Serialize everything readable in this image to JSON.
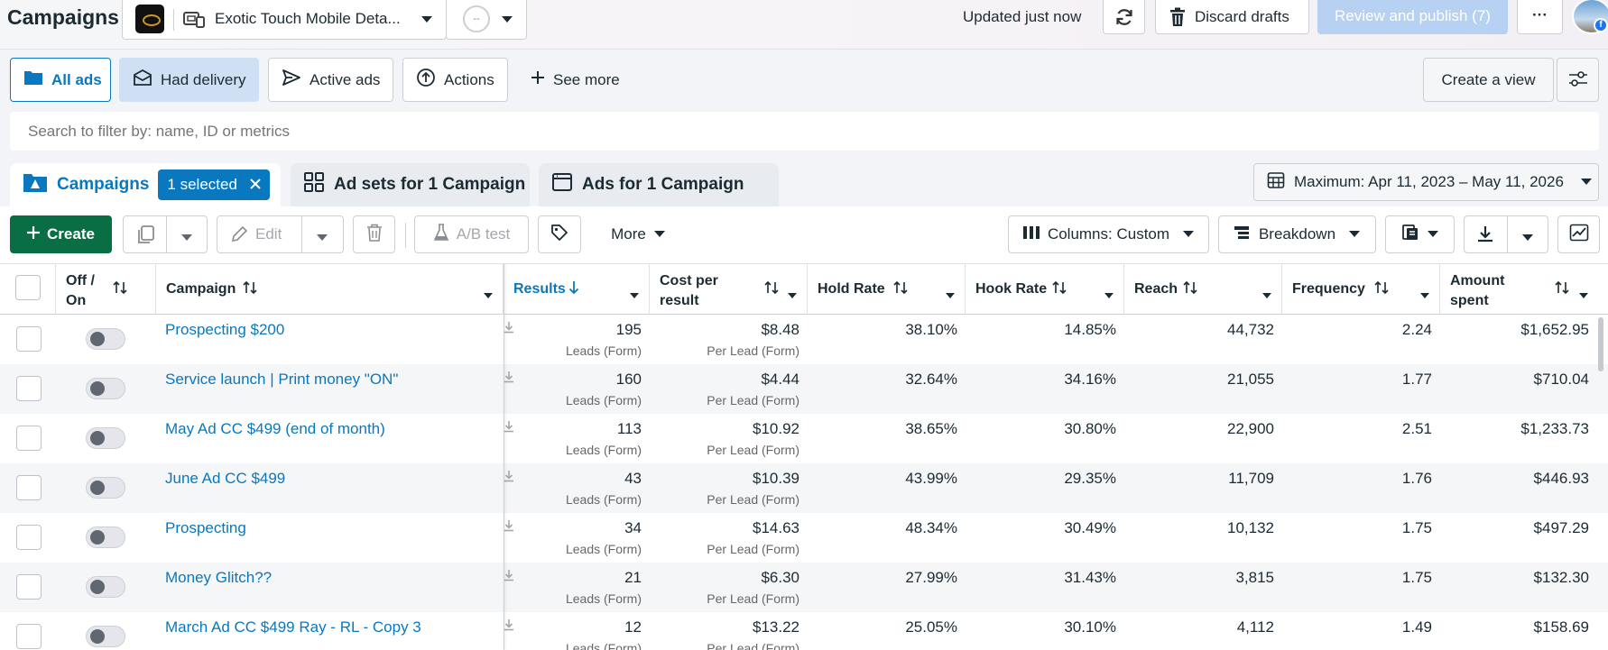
{
  "header": {
    "title": "Campaigns",
    "account_name": "Exotic Touch Mobile Deta...",
    "secondary_account": "--",
    "updated_text": "Updated just now",
    "discard_label": "Discard drafts",
    "publish_label": "Review and publish (7)",
    "more_label": "···"
  },
  "filters": {
    "all_ads": "All ads",
    "had_delivery": "Had delivery",
    "active_ads": "Active ads",
    "actions": "Actions",
    "see_more": "See more",
    "create_view": "Create a view"
  },
  "search": {
    "placeholder": "Search to filter by: name, ID or metrics"
  },
  "tabs": {
    "campaigns": "Campaigns",
    "selected_badge": "1 selected",
    "ad_sets": "Ad sets for 1 Campaign",
    "ads": "Ads for 1 Campaign",
    "date_range": "Maximum: Apr 11, 2023 – May 11, 2026"
  },
  "toolbar": {
    "create": "Create",
    "edit": "Edit",
    "ab_test": "A/B test",
    "more": "More",
    "columns": "Columns: Custom",
    "breakdown": "Breakdown"
  },
  "table": {
    "headers": {
      "off_on": "Off / On",
      "campaign": "Campaign",
      "results": "Results",
      "cost_per_result": "Cost per result",
      "hold_rate": "Hold Rate",
      "hook_rate": "Hook Rate",
      "reach": "Reach",
      "frequency": "Frequency",
      "amount_spent": "Amount spent"
    },
    "rows": [
      {
        "name": "Prospecting $200",
        "results": "195",
        "results_sub": "Leads (Form)",
        "cost": "$8.48",
        "cost_sub": "Per Lead (Form)",
        "hold": "38.10%",
        "hook": "14.85%",
        "reach": "44,732",
        "freq": "2.24",
        "spent": "$1,652.95"
      },
      {
        "name": "Service launch | Print money \"ON\"",
        "results": "160",
        "results_sub": "Leads (Form)",
        "cost": "$4.44",
        "cost_sub": "Per Lead (Form)",
        "hold": "32.64%",
        "hook": "34.16%",
        "reach": "21,055",
        "freq": "1.77",
        "spent": "$710.04"
      },
      {
        "name": "May Ad CC $499 (end of month)",
        "results": "113",
        "results_sub": "Leads (Form)",
        "cost": "$10.92",
        "cost_sub": "Per Lead (Form)",
        "hold": "38.65%",
        "hook": "30.80%",
        "reach": "22,900",
        "freq": "2.51",
        "spent": "$1,233.73"
      },
      {
        "name": "June Ad CC $499",
        "results": "43",
        "results_sub": "Leads (Form)",
        "cost": "$10.39",
        "cost_sub": "Per Lead (Form)",
        "hold": "43.99%",
        "hook": "29.35%",
        "reach": "11,709",
        "freq": "1.76",
        "spent": "$446.93"
      },
      {
        "name": "Prospecting",
        "results": "34",
        "results_sub": "Leads (Form)",
        "cost": "$14.63",
        "cost_sub": "Per Lead (Form)",
        "hold": "48.34%",
        "hook": "30.49%",
        "reach": "10,132",
        "freq": "1.75",
        "spent": "$497.29"
      },
      {
        "name": "Money Glitch??",
        "results": "21",
        "results_sub": "Leads (Form)",
        "cost": "$6.30",
        "cost_sub": "Per Lead (Form)",
        "hold": "27.99%",
        "hook": "31.43%",
        "reach": "3,815",
        "freq": "1.75",
        "spent": "$132.30"
      },
      {
        "name": "March Ad CC $499 Ray - RL - Copy 3",
        "results": "12",
        "results_sub": "Leads (Form)",
        "cost": "$13.22",
        "cost_sub": "Per Lead (Form)",
        "hold": "25.05%",
        "hook": "30.10%",
        "reach": "4,112",
        "freq": "1.49",
        "spent": "$158.69"
      }
    ]
  },
  "colors": {
    "accent": "#0a78be",
    "create_green": "#0a6e45",
    "publish_disabled": "#b7d1f2"
  }
}
